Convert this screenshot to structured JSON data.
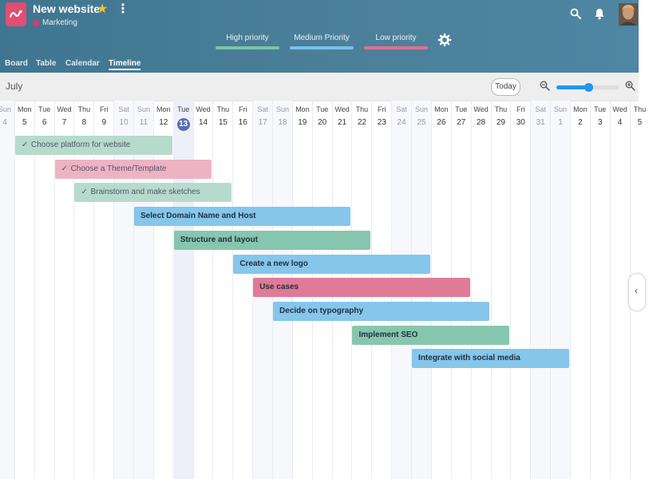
{
  "header": {
    "title": "New website",
    "tag": "Marketing",
    "legend": [
      {
        "label": "High priority",
        "color": "#7cc4a4"
      },
      {
        "label": "Medium Priority",
        "color": "#77c0ea"
      },
      {
        "label": "Low priority",
        "color": "#e0708e"
      }
    ],
    "tabs": [
      {
        "label": "Board",
        "active": false
      },
      {
        "label": "Table",
        "active": false
      },
      {
        "label": "Calendar",
        "active": false
      },
      {
        "label": "Timeline",
        "active": true
      }
    ],
    "icons": [
      "app-logo-icon",
      "star-icon",
      "kebab-icon",
      "gear-icon",
      "search-icon",
      "bell-icon"
    ]
  },
  "toolbar": {
    "month": "July",
    "today_label": "Today",
    "zoom_level": 0.52
  },
  "timeline": {
    "days": [
      {
        "name": "Sun",
        "num": "4",
        "weekend": true
      },
      {
        "name": "Mon",
        "num": "5",
        "weekend": false
      },
      {
        "name": "Tue",
        "num": "6",
        "weekend": false
      },
      {
        "name": "Wed",
        "num": "7",
        "weekend": false
      },
      {
        "name": "Thu",
        "num": "8",
        "weekend": false
      },
      {
        "name": "Fri",
        "num": "9",
        "weekend": false
      },
      {
        "name": "Sat",
        "num": "10",
        "weekend": true
      },
      {
        "name": "Sun",
        "num": "11",
        "weekend": true
      },
      {
        "name": "Mon",
        "num": "12",
        "weekend": false
      },
      {
        "name": "Tue",
        "num": "13",
        "weekend": false,
        "today": true
      },
      {
        "name": "Wed",
        "num": "14",
        "weekend": false
      },
      {
        "name": "Thu",
        "num": "15",
        "weekend": false
      },
      {
        "name": "Fri",
        "num": "16",
        "weekend": false
      },
      {
        "name": "Sat",
        "num": "17",
        "weekend": true
      },
      {
        "name": "Sun",
        "num": "18",
        "weekend": true
      },
      {
        "name": "Mon",
        "num": "19",
        "weekend": false
      },
      {
        "name": "Tue",
        "num": "20",
        "weekend": false
      },
      {
        "name": "Wed",
        "num": "21",
        "weekend": false
      },
      {
        "name": "Thu",
        "num": "22",
        "weekend": false
      },
      {
        "name": "Fri",
        "num": "23",
        "weekend": false
      },
      {
        "name": "Sat",
        "num": "24",
        "weekend": true
      },
      {
        "name": "Sun",
        "num": "25",
        "weekend": true
      },
      {
        "name": "Mon",
        "num": "26",
        "weekend": false
      },
      {
        "name": "Tue",
        "num": "27",
        "weekend": false
      },
      {
        "name": "Wed",
        "num": "28",
        "weekend": false
      },
      {
        "name": "Thu",
        "num": "29",
        "weekend": false
      },
      {
        "name": "Fri",
        "num": "30",
        "weekend": false
      },
      {
        "name": "Sat",
        "num": "31",
        "weekend": true
      },
      {
        "name": "Sun",
        "num": "1",
        "weekend": true
      },
      {
        "name": "Mon",
        "num": "2",
        "weekend": false
      },
      {
        "name": "Tue",
        "num": "3",
        "weekend": false
      },
      {
        "name": "Wed",
        "num": "4",
        "weekend": false
      },
      {
        "name": "Thu",
        "num": "5",
        "weekend": false
      }
    ],
    "tasks": [
      {
        "label": "Choose platform for website",
        "priority": "high",
        "done": true,
        "start": 1,
        "span": 8
      },
      {
        "label": "Choose a Theme/Template",
        "priority": "low",
        "done": true,
        "start": 3,
        "span": 8
      },
      {
        "label": "Brainstorm and make sketches",
        "priority": "high",
        "done": true,
        "start": 4,
        "span": 8
      },
      {
        "label": "Select Domain Name and Host",
        "priority": "medium",
        "done": false,
        "start": 7,
        "span": 11
      },
      {
        "label": "Structure and layout",
        "priority": "high",
        "done": false,
        "start": 9,
        "span": 10
      },
      {
        "label": "Create a new logo",
        "priority": "medium",
        "done": false,
        "start": 12,
        "span": 10
      },
      {
        "label": "Use cases",
        "priority": "low",
        "done": false,
        "start": 13,
        "span": 11
      },
      {
        "label": "Decide on typography",
        "priority": "medium",
        "done": false,
        "start": 14,
        "span": 11
      },
      {
        "label": "Implement SEO",
        "priority": "high",
        "done": false,
        "start": 18,
        "span": 8
      },
      {
        "label": "Integrate with social media",
        "priority": "medium",
        "done": false,
        "start": 21,
        "span": 8
      }
    ]
  },
  "colors": {
    "high": "#87c6ae",
    "medium": "#86c6ea",
    "low": "#e07b97",
    "high_done": "#b6dbcd",
    "low_done": "#eeb3c3",
    "today": "#5a6db0"
  }
}
